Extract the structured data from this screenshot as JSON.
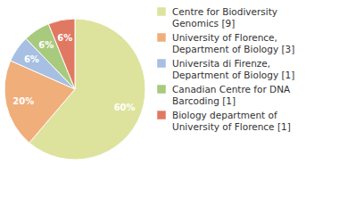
{
  "chart_data": {
    "type": "pie",
    "categories": [
      "Centre for Biodiversity Genomics [9]",
      "University of Florence, Department of Biology [3]",
      "Universita di Firenze, Department of Biology [1]",
      "Canadian Centre for DNA Barcoding [1]",
      "Biology department of University of Florence [1]"
    ],
    "values": [
      60,
      20,
      6,
      6,
      6
    ],
    "value_labels": [
      "60%",
      "20%",
      "6%",
      "6%",
      "6%"
    ],
    "colors": [
      "#dde39d",
      "#f0ae7a",
      "#a6bfe2",
      "#a8ca7d",
      "#e07862"
    ],
    "data_labels": true,
    "legend": "right"
  }
}
